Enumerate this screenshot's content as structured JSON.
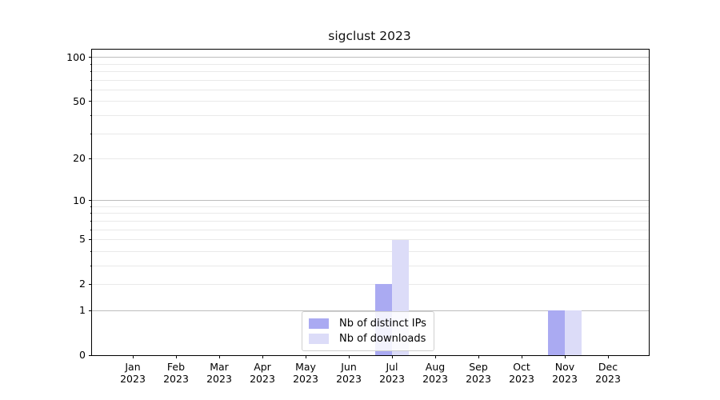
{
  "chart_data": {
    "type": "bar",
    "title": "sigclust 2023",
    "categories": [
      "Jan 2023",
      "Feb 2023",
      "Mar 2023",
      "Apr 2023",
      "May 2023",
      "Jun 2023",
      "Jul 2023",
      "Aug 2023",
      "Sep 2023",
      "Oct 2023",
      "Nov 2023",
      "Dec 2023"
    ],
    "x_tick_months": [
      "Jan",
      "Feb",
      "Mar",
      "Apr",
      "May",
      "Jun",
      "Jul",
      "Aug",
      "Sep",
      "Oct",
      "Nov",
      "Dec"
    ],
    "x_tick_year": "2023",
    "series": [
      {
        "name": "Nb of distinct IPs",
        "color": "#aaaaf2",
        "values": [
          0,
          0,
          0,
          0,
          0,
          0,
          2,
          0,
          0,
          0,
          1,
          0
        ]
      },
      {
        "name": "Nb of downloads",
        "color": "#dcdcf8",
        "values": [
          0,
          0,
          0,
          0,
          0,
          0,
          5,
          0,
          0,
          0,
          1,
          0
        ]
      }
    ],
    "xlabel": "",
    "ylabel": "",
    "y_scale": "log1p",
    "ylim": [
      0,
      113
    ],
    "y_ticks_labeled": [
      0,
      1,
      2,
      5,
      10,
      20,
      50,
      100
    ],
    "y_gridlines_major": [
      1,
      10,
      100
    ],
    "y_gridlines_minor": [
      2,
      3,
      4,
      5,
      6,
      7,
      8,
      9,
      20,
      30,
      40,
      50,
      60,
      70,
      80,
      90
    ],
    "y_minor_tickmarks": [
      3,
      4,
      6,
      7,
      8,
      9,
      30,
      40,
      60,
      70,
      80,
      90
    ],
    "grid": true,
    "legend_position": "lower center",
    "colors": {
      "grid_major": "#bdbdbd",
      "grid_minor": "#e9e9e9",
      "spine": "#000000",
      "legend_border": "#cfcfcf"
    }
  }
}
